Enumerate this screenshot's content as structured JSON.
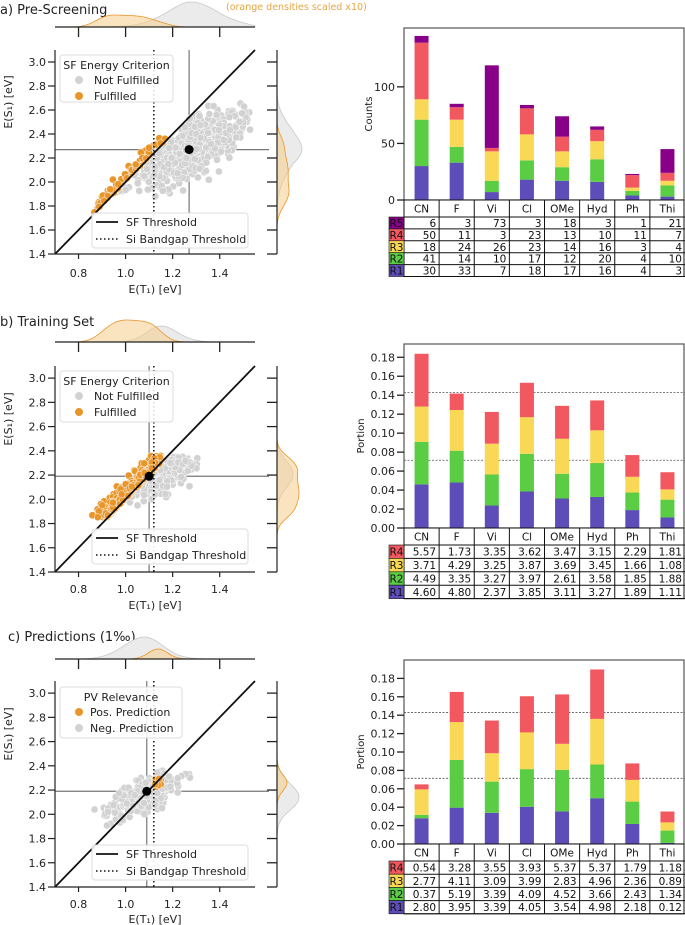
{
  "colors": {
    "not_fulfilled": "#d2d2d2",
    "fulfilled": "#e8952a",
    "R1": "#5d4db8",
    "R2": "#5acd45",
    "R3": "#f9d855",
    "R4": "#f2585f",
    "R5": "#880088"
  },
  "chart_data": [
    {
      "type": "scatter",
      "title": "a) Pre-Screening",
      "annotation": "(orange densities scaled x10)",
      "xlabel": "E(T₁) [eV]",
      "ylabel": "E(S₁) [eV]",
      "xlim": [
        0.7,
        1.55
      ],
      "ylim": [
        1.4,
        3.1
      ],
      "xticks": [
        0.8,
        1.0,
        1.2,
        1.4
      ],
      "yticks": [
        1.4,
        1.6,
        1.8,
        2.0,
        2.2,
        2.4,
        2.6,
        2.8,
        3.0
      ],
      "legend_title": "SF Energy Criterion",
      "legend": [
        {
          "label": "Not Fulfilled",
          "color": "#d2d2d2"
        },
        {
          "label": "Fulfilled",
          "color": "#e8952a"
        }
      ],
      "line_legend": [
        "SF Threshold",
        "Si Bandgap Threshold"
      ],
      "sf_threshold": "E(S1) = 2·E(T1)",
      "si_bandgap_threshold": 1.12,
      "reference_point": [
        1.27,
        2.27
      ],
      "marginal_densities": "top and right, grey and orange KDEs"
    },
    {
      "type": "bar",
      "stacked": true,
      "ylabel": "Counts",
      "ylim": [
        0,
        152
      ],
      "yticks": [
        0,
        50,
        100
      ],
      "categories": [
        "CN",
        "F",
        "Vi",
        "Cl",
        "OMe",
        "Hyd",
        "Ph",
        "Thi"
      ],
      "series": [
        {
          "name": "R1",
          "values": [
            30,
            33,
            7,
            18,
            17,
            16,
            4,
            3
          ]
        },
        {
          "name": "R2",
          "values": [
            41,
            14,
            10,
            17,
            12,
            20,
            4,
            10
          ]
        },
        {
          "name": "R3",
          "values": [
            18,
            24,
            26,
            23,
            14,
            16,
            3,
            4
          ]
        },
        {
          "name": "R4",
          "values": [
            50,
            11,
            3,
            23,
            13,
            10,
            11,
            7
          ]
        },
        {
          "name": "R5",
          "values": [
            6,
            3,
            73,
            3,
            18,
            3,
            1,
            21
          ]
        }
      ],
      "table_rows": [
        {
          "name": "R5",
          "cells": [
            "6",
            "3",
            "73",
            "3",
            "18",
            "3",
            "1",
            "21"
          ]
        },
        {
          "name": "R4",
          "cells": [
            "50",
            "11",
            "3",
            "23",
            "13",
            "10",
            "11",
            "7"
          ]
        },
        {
          "name": "R3",
          "cells": [
            "18",
            "24",
            "26",
            "23",
            "14",
            "16",
            "3",
            "4"
          ]
        },
        {
          "name": "R2",
          "cells": [
            "41",
            "14",
            "10",
            "17",
            "12",
            "20",
            "4",
            "10"
          ]
        },
        {
          "name": "R1",
          "cells": [
            "30",
            "33",
            "7",
            "18",
            "17",
            "16",
            "4",
            "3"
          ]
        }
      ],
      "reference_lines": []
    },
    {
      "type": "scatter",
      "title": "b) Training Set",
      "xlabel": "E(T₁) [eV]",
      "ylabel": "E(S₁) [eV]",
      "xlim": [
        0.7,
        1.55
      ],
      "ylim": [
        1.4,
        3.1
      ],
      "xticks": [
        0.8,
        1.0,
        1.2,
        1.4
      ],
      "yticks": [
        1.4,
        1.6,
        1.8,
        2.0,
        2.2,
        2.4,
        2.6,
        2.8,
        3.0
      ],
      "legend_title": "SF Energy Criterion",
      "legend": [
        {
          "label": "Not Fulfilled",
          "color": "#d2d2d2"
        },
        {
          "label": "Fulfilled",
          "color": "#e8952a"
        }
      ],
      "line_legend": [
        "SF Threshold",
        "Si Bandgap Threshold"
      ],
      "sf_threshold": "E(S1) = 2·E(T1)",
      "si_bandgap_threshold": 1.12,
      "reference_point": [
        1.1,
        2.19
      ]
    },
    {
      "type": "bar",
      "stacked": true,
      "ylabel": "Portion",
      "ylim": [
        0,
        0.194
      ],
      "yticks": [
        0.0,
        0.02,
        0.04,
        0.06,
        0.08,
        0.1,
        0.12,
        0.14,
        0.16,
        0.18
      ],
      "categories": [
        "CN",
        "F",
        "Vi",
        "Cl",
        "OMe",
        "Hyd",
        "Ph",
        "Thi"
      ],
      "series": [
        {
          "name": "R1",
          "values": [
            0.046,
            0.048,
            0.0237,
            0.0385,
            0.0311,
            0.0327,
            0.0189,
            0.0111
          ]
        },
        {
          "name": "R2",
          "values": [
            0.0449,
            0.0335,
            0.0327,
            0.0397,
            0.0261,
            0.0358,
            0.0185,
            0.0188
          ]
        },
        {
          "name": "R3",
          "values": [
            0.0371,
            0.0429,
            0.0325,
            0.0387,
            0.0369,
            0.0345,
            0.0166,
            0.0108
          ]
        },
        {
          "name": "R4",
          "values": [
            0.0557,
            0.0173,
            0.0335,
            0.0362,
            0.0347,
            0.0315,
            0.0229,
            0.0181
          ]
        }
      ],
      "table_rows": [
        {
          "name": "R4",
          "cells": [
            "5.57",
            "1.73",
            "3.35",
            "3.62",
            "3.47",
            "3.15",
            "2.29",
            "1.81"
          ]
        },
        {
          "name": "R3",
          "cells": [
            "3.71",
            "4.29",
            "3.25",
            "3.87",
            "3.69",
            "3.45",
            "1.66",
            "1.08"
          ]
        },
        {
          "name": "R2",
          "cells": [
            "4.49",
            "3.35",
            "3.27",
            "3.97",
            "2.61",
            "3.58",
            "1.85",
            "1.88"
          ]
        },
        {
          "name": "R1",
          "cells": [
            "4.60",
            "4.80",
            "2.37",
            "3.85",
            "3.11",
            "3.27",
            "1.89",
            "1.11"
          ]
        }
      ],
      "reference_lines": [
        0.143,
        0.0714
      ]
    },
    {
      "type": "scatter",
      "title": "c) Predictions (1‰)",
      "xlabel": "E(T₁) [eV]",
      "ylabel": "E(S₁) [eV]",
      "xlim": [
        0.7,
        1.55
      ],
      "ylim": [
        1.4,
        3.1
      ],
      "xticks": [
        0.8,
        1.0,
        1.2,
        1.4
      ],
      "yticks": [
        1.4,
        1.6,
        1.8,
        2.0,
        2.2,
        2.4,
        2.6,
        2.8,
        3.0
      ],
      "legend_title": "PV Relevance",
      "legend": [
        {
          "label": "Pos.  Prediction",
          "color": "#e8952a"
        },
        {
          "label": "Neg. Prediction",
          "color": "#d2d2d2"
        }
      ],
      "line_legend": [
        "SF Threshold",
        "Si Bandgap Threshold"
      ],
      "sf_threshold": "E(S1) = 2·E(T1)",
      "si_bandgap_threshold": 1.12,
      "reference_point": [
        1.09,
        2.19
      ]
    },
    {
      "type": "bar",
      "stacked": true,
      "ylabel": "Portion",
      "ylim": [
        0,
        0.2
      ],
      "yticks": [
        0.0,
        0.02,
        0.04,
        0.06,
        0.08,
        0.1,
        0.12,
        0.14,
        0.16,
        0.18
      ],
      "categories": [
        "CN",
        "F",
        "Vi",
        "Cl",
        "OMe",
        "Hyd",
        "Ph",
        "Thi"
      ],
      "series": [
        {
          "name": "R1",
          "values": [
            0.028,
            0.0395,
            0.0339,
            0.0405,
            0.0354,
            0.0498,
            0.0218,
            0.0012
          ]
        },
        {
          "name": "R2",
          "values": [
            0.0037,
            0.0519,
            0.0339,
            0.0409,
            0.0452,
            0.0366,
            0.0243,
            0.0134
          ]
        },
        {
          "name": "R3",
          "values": [
            0.0277,
            0.0411,
            0.0309,
            0.0399,
            0.0283,
            0.0496,
            0.0236,
            0.0089
          ]
        },
        {
          "name": "R4",
          "values": [
            0.0054,
            0.0328,
            0.0355,
            0.0393,
            0.0537,
            0.0537,
            0.0179,
            0.0118
          ]
        }
      ],
      "table_rows": [
        {
          "name": "R4",
          "cells": [
            "0.54",
            "3.28",
            "3.55",
            "3.93",
            "5.37",
            "5.37",
            "1.79",
            "1.18"
          ]
        },
        {
          "name": "R3",
          "cells": [
            "2.77",
            "4.11",
            "3.09",
            "3.99",
            "2.83",
            "4.96",
            "2.36",
            "0.89"
          ]
        },
        {
          "name": "R2",
          "cells": [
            "0.37",
            "5.19",
            "3.39",
            "4.09",
            "4.52",
            "3.66",
            "2.43",
            "1.34"
          ]
        },
        {
          "name": "R1",
          "cells": [
            "2.80",
            "3.95",
            "3.39",
            "4.05",
            "3.54",
            "4.98",
            "2.18",
            "0.12"
          ]
        }
      ],
      "reference_lines": [
        0.143,
        0.0714
      ]
    }
  ]
}
